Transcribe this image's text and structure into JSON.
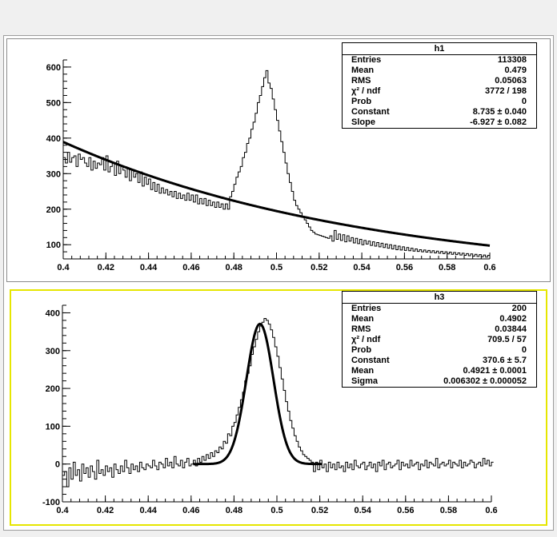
{
  "chart_data": [
    {
      "type": "histogram",
      "name": "h1",
      "xlim": [
        0.4,
        0.6
      ],
      "ylim": [
        60,
        620
      ],
      "x_ticks": [
        "0.4",
        "0.42",
        "0.44",
        "0.46",
        "0.48",
        "0.5",
        "0.52",
        "0.54",
        "0.56",
        "0.58",
        "0.6"
      ],
      "y_ticks": [
        "100",
        "200",
        "300",
        "400",
        "500",
        "600"
      ],
      "bin_edges_start": 0.4,
      "bin_width": 0.001,
      "bin_values": [
        345,
        330,
        360,
        332,
        345,
        350,
        320,
        355,
        340,
        345,
        330,
        320,
        345,
        310,
        335,
        315,
        330,
        325,
        345,
        310,
        350,
        305,
        320,
        330,
        295,
        335,
        300,
        320,
        310,
        290,
        315,
        280,
        310,
        290,
        300,
        275,
        305,
        265,
        290,
        270,
        285,
        255,
        275,
        250,
        270,
        245,
        260,
        245,
        255,
        240,
        250,
        235,
        250,
        230,
        245,
        230,
        240,
        225,
        245,
        225,
        240,
        220,
        240,
        215,
        230,
        215,
        230,
        210,
        225,
        210,
        220,
        205,
        220,
        205,
        215,
        200,
        215,
        200,
        235,
        250,
        270,
        290,
        305,
        320,
        345,
        360,
        385,
        400,
        425,
        445,
        470,
        500,
        520,
        545,
        570,
        590,
        555,
        540,
        510,
        480,
        450,
        420,
        390,
        360,
        330,
        300,
        275,
        250,
        225,
        210,
        200,
        190,
        180,
        170,
        160,
        150,
        140,
        135,
        130,
        128,
        126,
        124,
        122,
        120,
        118,
        125,
        110,
        140,
        115,
        130,
        112,
        128,
        108,
        125,
        110,
        120,
        105,
        118,
        103,
        115,
        100,
        112,
        102,
        110,
        98,
        108,
        96,
        106,
        94,
        104,
        92,
        102,
        90,
        100,
        88,
        98,
        86,
        96,
        85,
        94,
        84,
        92,
        83,
        90,
        82,
        88,
        81,
        86,
        80,
        85,
        79,
        84,
        78,
        83,
        77,
        82,
        76,
        81,
        75,
        80,
        74,
        79,
        73,
        78,
        72,
        77,
        71,
        76,
        70,
        75,
        69,
        74,
        68,
        73,
        67,
        72,
        66,
        71,
        65,
        70
      ],
      "fit": {
        "function": "exp(Constant + Slope*x)",
        "constant": 8.735,
        "slope": -6.927
      },
      "stats": [
        {
          "label": "Entries",
          "value": "113308"
        },
        {
          "label": "Mean",
          "value": "0.479"
        },
        {
          "label": "RMS",
          "value": "0.05063"
        },
        {
          "label": "χ² / ndf",
          "value": "3772 / 198"
        },
        {
          "label": "Prob",
          "value": "0"
        },
        {
          "label": "Constant",
          "value": "8.735 ± 0.040"
        },
        {
          "label": "Slope",
          "value": "-6.927 ± 0.082"
        }
      ]
    },
    {
      "type": "histogram",
      "name": "h3",
      "xlim": [
        0.4,
        0.6
      ],
      "ylim": [
        -100,
        420
      ],
      "x_ticks": [
        "0.4",
        "0.42",
        "0.44",
        "0.46",
        "0.48",
        "0.5",
        "0.52",
        "0.54",
        "0.56",
        "0.58",
        "0.6"
      ],
      "y_ticks": [
        "-100",
        "0",
        "100",
        "200",
        "300",
        "400"
      ],
      "bin_edges_start": 0.4,
      "bin_width": 0.001,
      "bin_values": [
        -30,
        -20,
        -60,
        -10,
        -40,
        5,
        -30,
        -15,
        -45,
        0,
        -25,
        -10,
        -35,
        -5,
        -20,
        -40,
        10,
        -25,
        -15,
        -30,
        -5,
        -20,
        -10,
        -35,
        0,
        -15,
        -25,
        -5,
        -20,
        10,
        -10,
        -25,
        0,
        -15,
        -5,
        -20,
        5,
        -10,
        -15,
        0,
        -5,
        -10,
        10,
        -5,
        -15,
        5,
        0,
        -10,
        15,
        -5,
        5,
        -10,
        20,
        0,
        -5,
        10,
        -10,
        5,
        15,
        -5,
        0,
        10,
        -5,
        15,
        5,
        20,
        10,
        25,
        15,
        30,
        20,
        35,
        30,
        45,
        40,
        60,
        55,
        80,
        75,
        100,
        110,
        130,
        150,
        170,
        190,
        220,
        240,
        260,
        290,
        310,
        330,
        350,
        365,
        375,
        385,
        380,
        370,
        355,
        335,
        310,
        285,
        255,
        225,
        195,
        165,
        140,
        115,
        95,
        75,
        60,
        45,
        35,
        25,
        20,
        15,
        10,
        5,
        -20,
        5,
        -15,
        10,
        -10,
        0,
        -20,
        5,
        -10,
        0,
        -15,
        5,
        -10,
        -5,
        -20,
        5,
        -10,
        0,
        -15,
        10,
        -5,
        -10,
        0,
        5,
        -15,
        -5,
        5,
        -10,
        0,
        -20,
        5,
        -5,
        10,
        -15,
        0,
        5,
        -10,
        -5,
        0,
        10,
        -15,
        5,
        -5,
        0,
        -10,
        10,
        -5,
        0,
        5,
        -15,
        0,
        -5,
        10,
        -10,
        5,
        0,
        -5,
        15,
        -10,
        0,
        5,
        -5,
        0,
        10,
        -10,
        5,
        0,
        -5,
        10,
        -10,
        5,
        -5,
        0,
        10,
        5,
        -10,
        0,
        5,
        -5,
        15,
        0,
        10,
        -5,
        5
      ],
      "fit": {
        "function": "gaus",
        "constant": 370.6,
        "mean": 0.4921,
        "sigma": 0.006302,
        "range": [
          0.461,
          0.521
        ]
      },
      "stats": [
        {
          "label": "Entries",
          "value": "200"
        },
        {
          "label": "Mean",
          "value": "0.4902"
        },
        {
          "label": "RMS",
          "value": "0.03844"
        },
        {
          "label": "χ² / ndf",
          "value": "709.5 / 57"
        },
        {
          "label": "Prob",
          "value": "0"
        },
        {
          "label": "Constant",
          "value": "370.6 ± 5.7"
        },
        {
          "label": "Mean",
          "value": "0.4921 ± 0.0001"
        },
        {
          "label": "Sigma",
          "value": "0.006302 ± 0.000052"
        }
      ]
    }
  ]
}
